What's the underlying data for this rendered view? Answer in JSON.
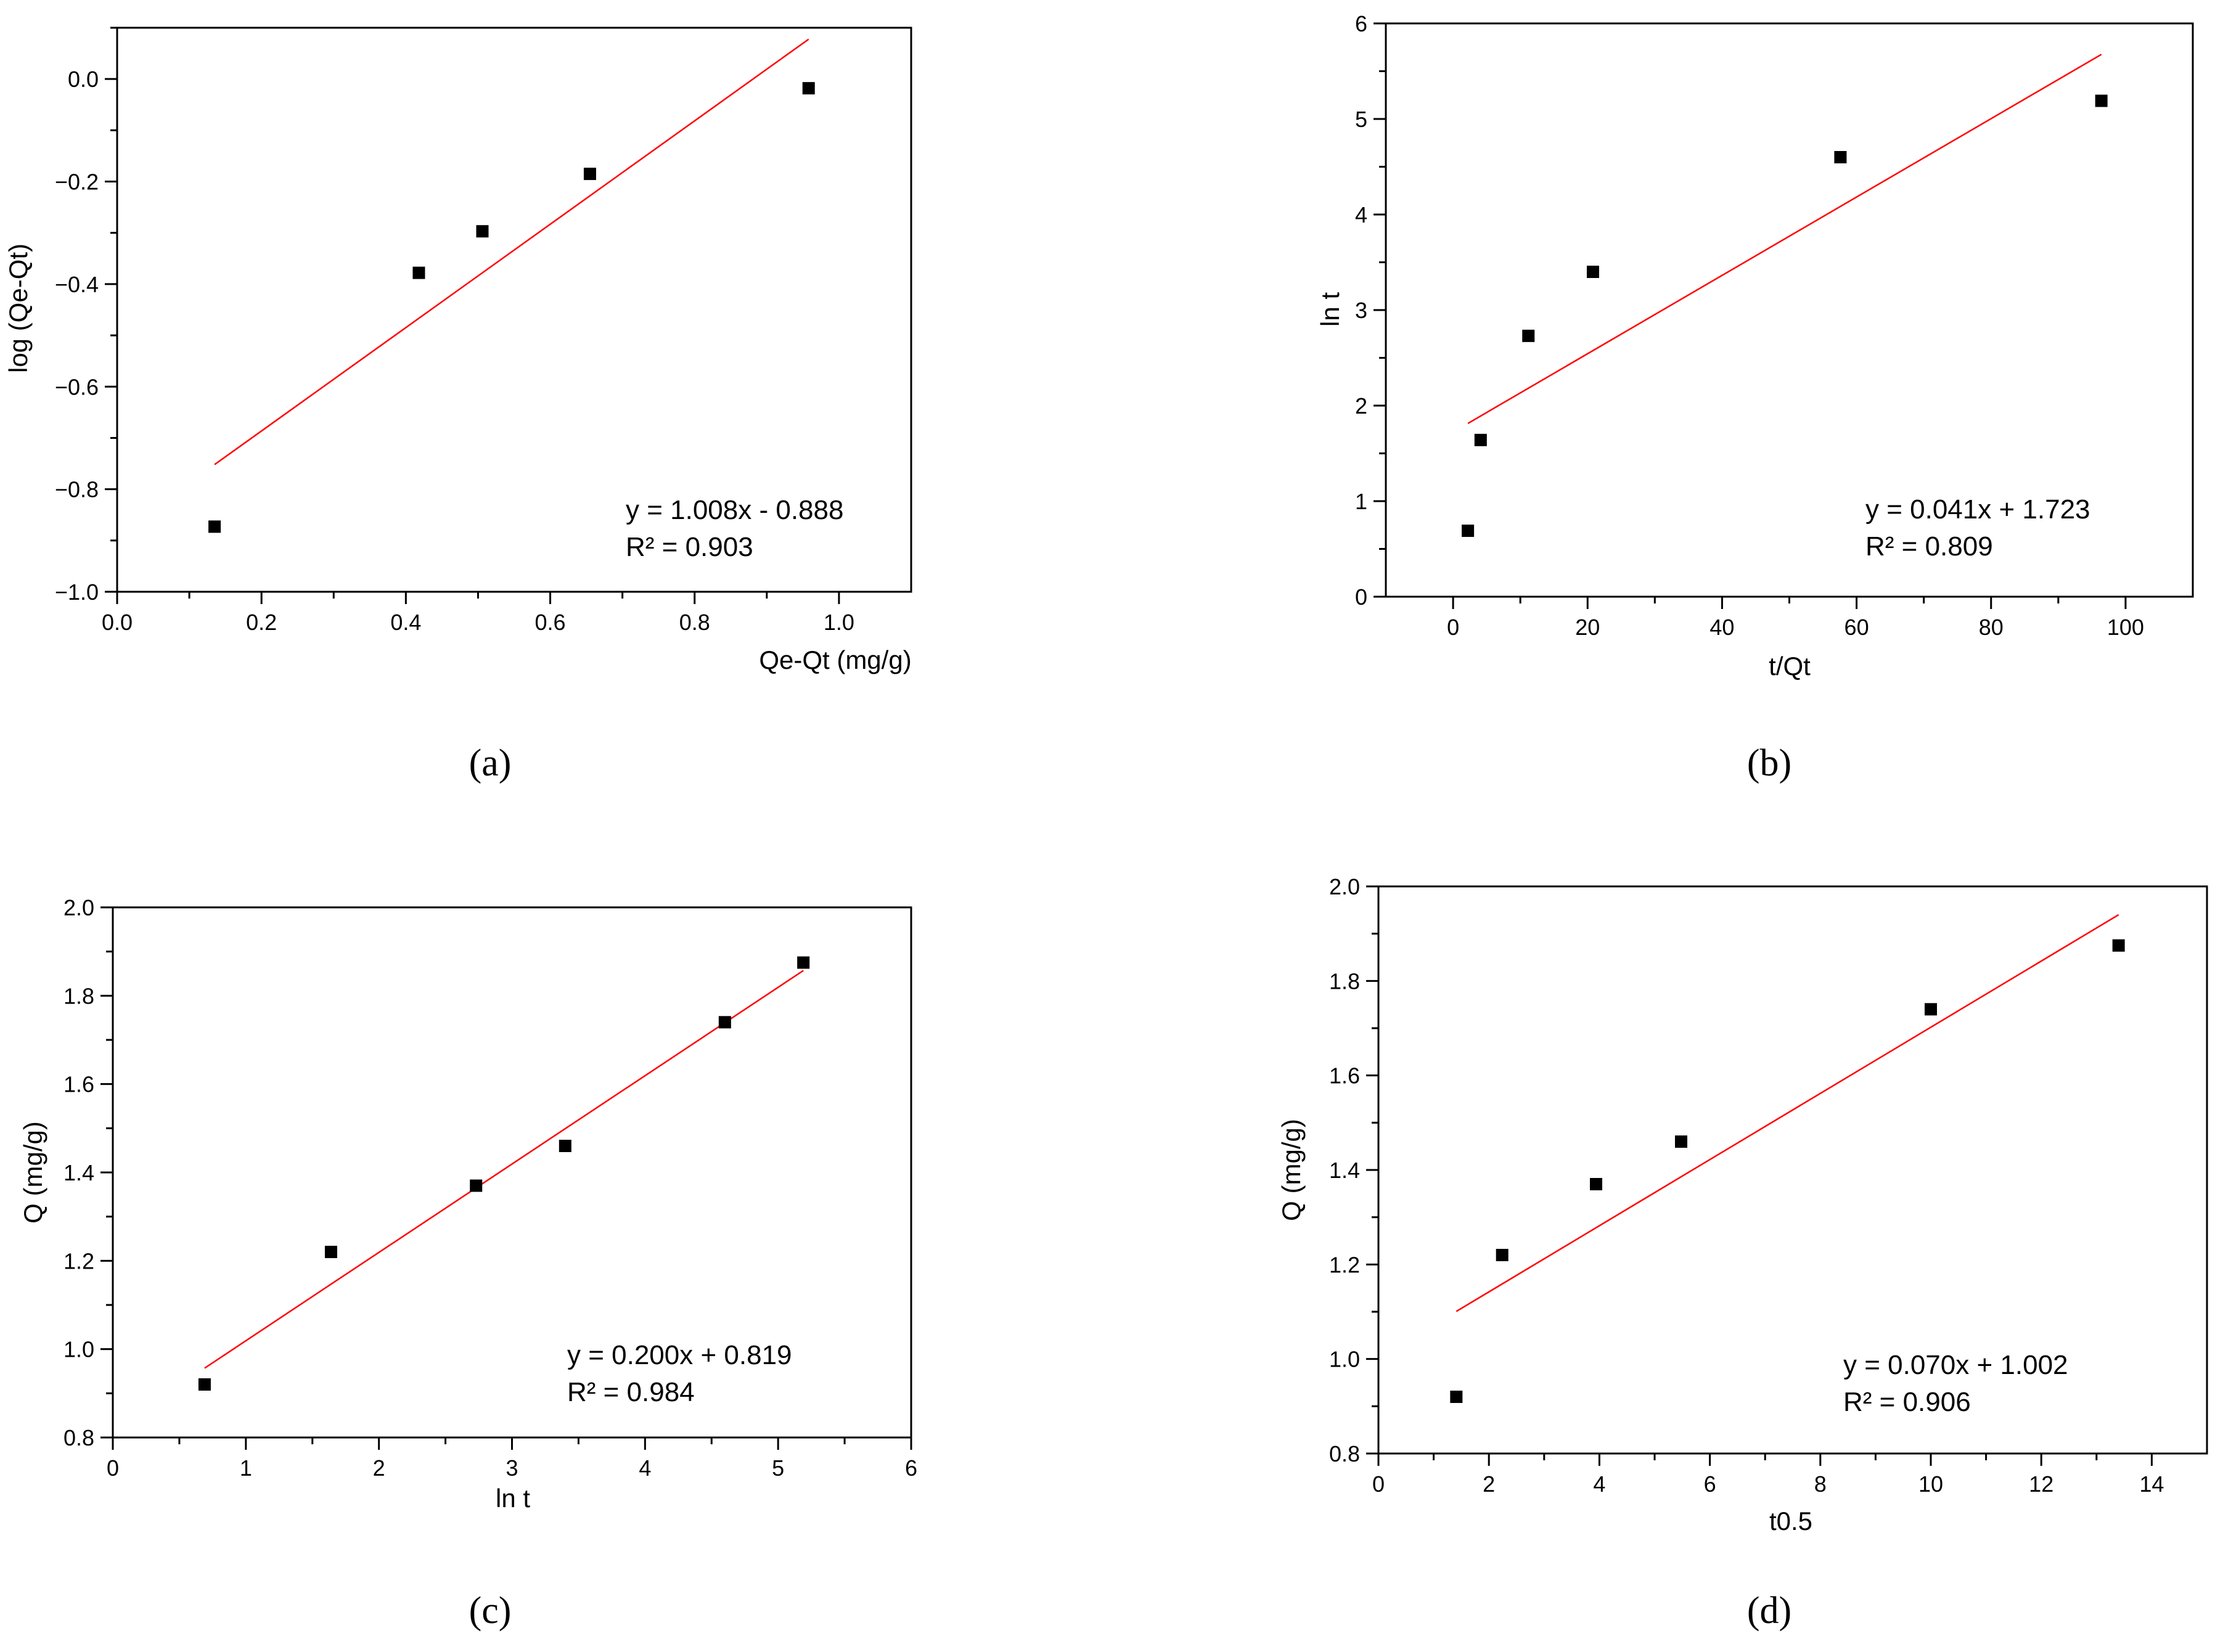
{
  "chart_data": [
    {
      "id": "a",
      "type": "scatter",
      "panel_label": "(a)",
      "xlabel": "Qe-Qt (mg/g)",
      "ylabel": "log (Qe-Qt)",
      "xlim": [
        0.0,
        1.1
      ],
      "ylim": [
        -1.0,
        0.1
      ],
      "xticks": [
        0.0,
        0.2,
        0.4,
        0.6,
        0.8,
        1.0
      ],
      "xtick_labels": [
        "0.0",
        "0.2",
        "0.4",
        "0.6",
        "0.8",
        "1.0"
      ],
      "yticks": [
        -1.0,
        -0.8,
        -0.6,
        -0.4,
        -0.2,
        0.0
      ],
      "ytick_labels": [
        "−1.0",
        "−0.8",
        "−0.6",
        "−0.4",
        "−0.2",
        "0.0"
      ],
      "points": [
        {
          "x": 0.135,
          "y": -0.873
        },
        {
          "x": 0.418,
          "y": -0.378
        },
        {
          "x": 0.506,
          "y": -0.297
        },
        {
          "x": 0.655,
          "y": -0.185
        },
        {
          "x": 0.958,
          "y": -0.018
        }
      ],
      "fit": {
        "slope": 1.008,
        "intercept": -0.888,
        "x_range": [
          0.135,
          0.958
        ]
      },
      "equation": "y = 1.008x - 0.888",
      "r2": "R² = 0.903",
      "point_color": "#000000",
      "fit_color": "#ff0000"
    },
    {
      "id": "b",
      "type": "scatter",
      "panel_label": "(b)",
      "xlabel": "t/Qt",
      "ylabel": "ln t",
      "xlim": [
        -10,
        110
      ],
      "ylim": [
        0,
        6
      ],
      "xticks": [
        0,
        20,
        40,
        60,
        80,
        100
      ],
      "xtick_labels": [
        "0",
        "20",
        "40",
        "60",
        "80",
        "100"
      ],
      "yticks": [
        0,
        1,
        2,
        3,
        4,
        5,
        6
      ],
      "ytick_labels": [
        "0",
        "1",
        "2",
        "3",
        "4",
        "5",
        "6"
      ],
      "points": [
        {
          "x": 2.2,
          "y": 0.69
        },
        {
          "x": 4.1,
          "y": 1.64
        },
        {
          "x": 11.2,
          "y": 2.73
        },
        {
          "x": 20.8,
          "y": 3.4
        },
        {
          "x": 57.6,
          "y": 4.6
        },
        {
          "x": 96.4,
          "y": 5.19
        }
      ],
      "fit": {
        "slope": 0.041,
        "intercept": 1.723,
        "x_range": [
          2.2,
          96.4
        ]
      },
      "equation": "y = 0.041x + 1.723",
      "r2": "R² = 0.809",
      "point_color": "#000000",
      "fit_color": "#ff0000"
    },
    {
      "id": "c",
      "type": "scatter",
      "panel_label": "(c)",
      "xlabel": "ln t",
      "ylabel": "Q (mg/g)",
      "xlim": [
        0,
        6
      ],
      "ylim": [
        0.8,
        2.0
      ],
      "xticks": [
        0,
        1,
        2,
        3,
        4,
        5,
        6
      ],
      "xtick_labels": [
        "0",
        "1",
        "2",
        "3",
        "4",
        "5",
        "6"
      ],
      "yticks": [
        0.8,
        1.0,
        1.2,
        1.4,
        1.6,
        1.8,
        2.0
      ],
      "ytick_labels": [
        "0.8",
        "1.0",
        "1.2",
        "1.4",
        "1.6",
        "1.8",
        "2.0"
      ],
      "points": [
        {
          "x": 0.69,
          "y": 0.92
        },
        {
          "x": 1.64,
          "y": 1.22
        },
        {
          "x": 2.73,
          "y": 1.37
        },
        {
          "x": 3.4,
          "y": 1.46
        },
        {
          "x": 4.6,
          "y": 1.74
        },
        {
          "x": 5.19,
          "y": 1.875
        }
      ],
      "fit": {
        "slope": 0.2,
        "intercept": 0.819,
        "x_range": [
          0.69,
          5.19
        ]
      },
      "equation": "y = 0.200x + 0.819",
      "r2": "R² = 0.984",
      "point_color": "#000000",
      "fit_color": "#ff0000"
    },
    {
      "id": "d",
      "type": "scatter",
      "panel_label": "(d)",
      "xlabel": "t0.5",
      "ylabel": "Q (mg/g)",
      "xlim": [
        0,
        15
      ],
      "ylim": [
        0.8,
        2.0
      ],
      "xticks": [
        0,
        2,
        4,
        6,
        8,
        10,
        12,
        14
      ],
      "xtick_labels": [
        "0",
        "2",
        "4",
        "6",
        "8",
        "10",
        "12",
        "14"
      ],
      "yticks": [
        0.8,
        1.0,
        1.2,
        1.4,
        1.6,
        1.8,
        2.0
      ],
      "ytick_labels": [
        "0.8",
        "1.0",
        "1.2",
        "1.4",
        "1.6",
        "1.8",
        "2.0"
      ],
      "points": [
        {
          "x": 1.41,
          "y": 0.92
        },
        {
          "x": 2.24,
          "y": 1.22
        },
        {
          "x": 3.94,
          "y": 1.37
        },
        {
          "x": 5.48,
          "y": 1.46
        },
        {
          "x": 10.0,
          "y": 1.74
        },
        {
          "x": 13.4,
          "y": 1.875
        }
      ],
      "fit": {
        "slope": 0.07,
        "intercept": 1.002,
        "x_range": [
          1.41,
          13.4
        ]
      },
      "equation": "y = 0.070x + 1.002",
      "r2": "R² = 0.906",
      "point_color": "#000000",
      "fit_color": "#ff0000"
    }
  ]
}
